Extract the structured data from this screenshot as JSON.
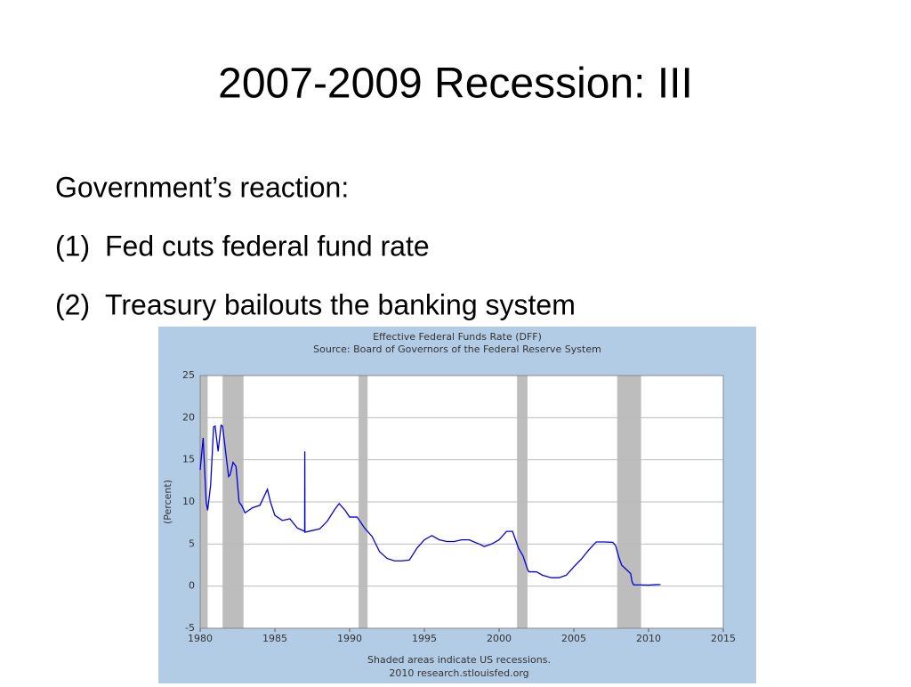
{
  "slide": {
    "title": "2007-2009 Recession: III",
    "intro": "Government’s reaction:",
    "items": [
      {
        "number": "(1)",
        "text": "Fed cuts federal fund rate"
      },
      {
        "number": "(2)",
        "text": "Treasury bailouts the banking system"
      }
    ]
  },
  "chart_data": {
    "type": "line",
    "title": "Effective Federal Funds Rate (DFF)",
    "subtitle": "Source: Board of Governors of the Federal Reserve System",
    "ylabel": "(Percent)",
    "notes": [
      "Shaded areas indicate US recessions.",
      "2010 research.stlouisfed.org"
    ],
    "color": "#0000dd",
    "recession_color": "#bdbdbd",
    "recessions": [
      [
        1980.0,
        1980.5
      ],
      [
        1981.5,
        1982.9
      ],
      [
        1990.6,
        1991.2
      ],
      [
        2001.2,
        2001.9
      ],
      [
        2007.9,
        2009.5
      ]
    ],
    "x": [
      1980.0,
      1980.2,
      1980.4,
      1980.5,
      1980.7,
      1980.9,
      1981.0,
      1981.2,
      1981.4,
      1981.5,
      1981.7,
      1981.9,
      1982.0,
      1982.2,
      1982.4,
      1982.6,
      1982.8,
      1983.0,
      1983.5,
      1984.0,
      1984.5,
      1984.7,
      1985.0,
      1985.5,
      1986.0,
      1986.5,
      1986.99,
      1987.0,
      1987.01,
      1987.5,
      1988.0,
      1988.5,
      1989.0,
      1989.3,
      1989.7,
      1990.0,
      1990.5,
      1991.0,
      1991.5,
      1992.0,
      1992.5,
      1993.0,
      1993.5,
      1994.0,
      1994.5,
      1995.0,
      1995.5,
      1996.0,
      1996.5,
      1997.0,
      1997.5,
      1998.0,
      1998.8,
      1999.0,
      1999.5,
      2000.0,
      2000.5,
      2000.9,
      2001.0,
      2001.3,
      2001.6,
      2001.9,
      2002.0,
      2002.5,
      2002.9,
      2003.0,
      2003.5,
      2004.0,
      2004.5,
      2005.0,
      2005.5,
      2006.0,
      2006.5,
      2007.0,
      2007.6,
      2007.8,
      2008.0,
      2008.2,
      2008.5,
      2008.8,
      2008.9,
      2009.0,
      2009.5,
      2010.0,
      2010.5,
      2010.8
    ],
    "values": [
      13.8,
      17.6,
      10,
      9,
      12,
      18.9,
      19,
      16,
      19.1,
      19,
      16,
      13,
      13.2,
      14.7,
      14.2,
      10,
      9.5,
      8.7,
      9.3,
      9.6,
      11.5,
      10,
      8.4,
      7.8,
      8,
      6.9,
      6.5,
      16,
      6.4,
      6.6,
      6.8,
      7.7,
      9.1,
      9.8,
      9,
      8.2,
      8.2,
      6.9,
      5.9,
      4.1,
      3.3,
      3,
      3,
      3.1,
      4.5,
      5.5,
      6,
      5.5,
      5.3,
      5.3,
      5.5,
      5.5,
      4.9,
      4.7,
      5,
      5.5,
      6.5,
      6.5,
      6,
      4.5,
      3.6,
      2,
      1.7,
      1.7,
      1.3,
      1.25,
      1,
      1,
      1.3,
      2.3,
      3.2,
      4.3,
      5.25,
      5.25,
      5.2,
      4.8,
      3.5,
      2.5,
      2,
      1.5,
      0.5,
      0.15,
      0.15,
      0.12,
      0.18,
      0.19
    ],
    "xlim": [
      1980,
      2015
    ],
    "xticks": [
      1980,
      1985,
      1990,
      1995,
      2000,
      2005,
      2010,
      2015
    ],
    "ylim": [
      -5,
      25
    ],
    "yticks": [
      -5,
      0,
      5,
      10,
      15,
      20,
      25
    ],
    "grid": true
  }
}
